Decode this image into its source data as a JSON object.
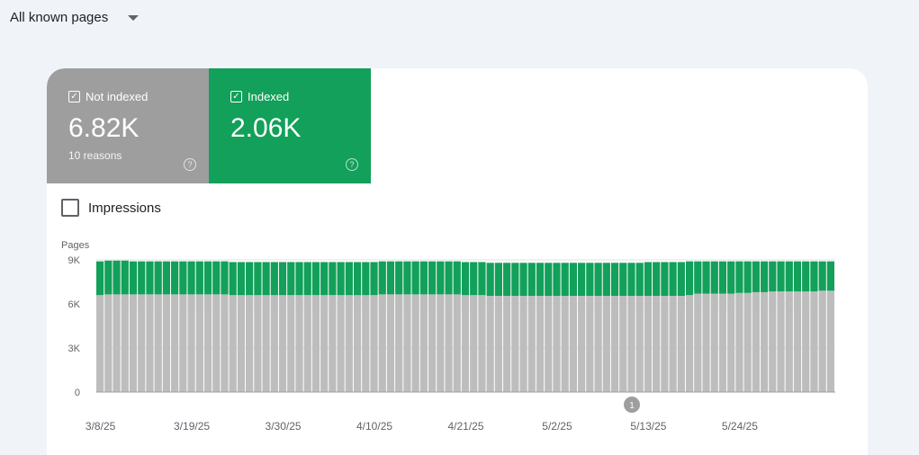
{
  "filter": {
    "label": "All known pages",
    "icon": "dropdown-arrow-icon"
  },
  "tiles": [
    {
      "label": "Not indexed",
      "value": "6.82K",
      "sub": "10 reasons",
      "color": "#9e9e9e",
      "checked": true
    },
    {
      "label": "Indexed",
      "value": "2.06K",
      "sub": "",
      "color": "#12a05a",
      "checked": true
    }
  ],
  "impressions": {
    "label": "Impressions",
    "checked": false
  },
  "chart_data": {
    "type": "bar",
    "stacked": true,
    "ylabel": "Pages",
    "ylim": [
      0,
      9000
    ],
    "yticks": [
      {
        "v": 0,
        "label": "0"
      },
      {
        "v": 3000,
        "label": "3K"
      },
      {
        "v": 6000,
        "label": "6K"
      },
      {
        "v": 9000,
        "label": "9K"
      }
    ],
    "xtick_labels": [
      "3/8/25",
      "3/19/25",
      "3/30/25",
      "4/10/25",
      "4/21/25",
      "5/2/25",
      "5/13/25",
      "5/24/25"
    ],
    "tick_every": 11,
    "annotation": {
      "label": "1",
      "bar_index": 64
    },
    "grid": true,
    "series": [
      {
        "color": "#bdbdbd",
        "values": [
          6600,
          6650,
          6650,
          6650,
          6650,
          6650,
          6650,
          6650,
          6650,
          6650,
          6650,
          6650,
          6650,
          6650,
          6650,
          6650,
          6600,
          6600,
          6600,
          6600,
          6600,
          6600,
          6600,
          6600,
          6600,
          6600,
          6600,
          6600,
          6600,
          6600,
          6600,
          6600,
          6600,
          6600,
          6650,
          6650,
          6650,
          6650,
          6650,
          6650,
          6650,
          6650,
          6650,
          6650,
          6600,
          6600,
          6600,
          6550,
          6550,
          6550,
          6550,
          6550,
          6550,
          6550,
          6550,
          6550,
          6550,
          6550,
          6550,
          6550,
          6550,
          6550,
          6550,
          6550,
          6550,
          6550,
          6550,
          6550,
          6550,
          6550,
          6550,
          6600,
          6700,
          6700,
          6700,
          6700,
          6700,
          6750,
          6750,
          6800,
          6800,
          6850,
          6850,
          6850,
          6850,
          6850,
          6850,
          6900,
          6900
        ]
      },
      {
        "color": "#12a05a",
        "values": [
          2300,
          2300,
          2300,
          2300,
          2250,
          2250,
          2250,
          2250,
          2250,
          2250,
          2250,
          2250,
          2250,
          2250,
          2250,
          2250,
          2250,
          2250,
          2250,
          2250,
          2250,
          2250,
          2250,
          2250,
          2250,
          2250,
          2250,
          2250,
          2250,
          2250,
          2250,
          2250,
          2250,
          2250,
          2250,
          2250,
          2250,
          2250,
          2250,
          2250,
          2250,
          2250,
          2250,
          2250,
          2250,
          2250,
          2250,
          2250,
          2250,
          2250,
          2250,
          2250,
          2250,
          2250,
          2250,
          2250,
          2250,
          2250,
          2250,
          2250,
          2250,
          2250,
          2250,
          2250,
          2250,
          2250,
          2300,
          2300,
          2300,
          2300,
          2300,
          2300,
          2200,
          2200,
          2200,
          2200,
          2200,
          2150,
          2150,
          2100,
          2100,
          2050,
          2050,
          2050,
          2050,
          2050,
          2050,
          2000,
          2000
        ]
      }
    ]
  }
}
